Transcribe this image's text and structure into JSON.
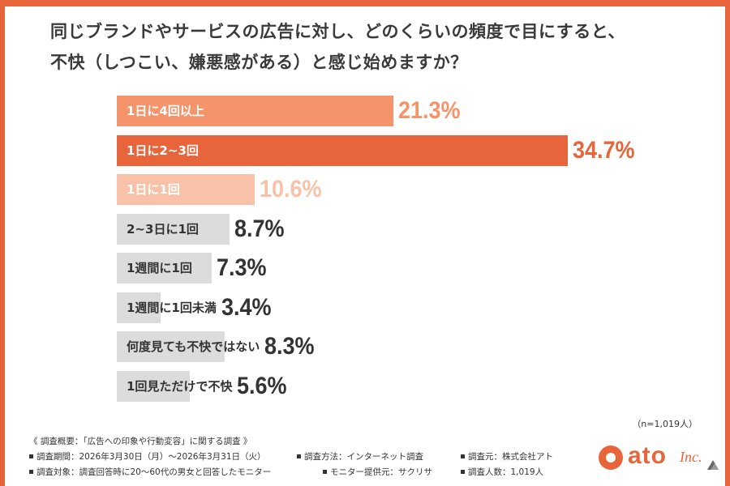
{
  "title": {
    "line1": "同じブランドやサービスの広告に対し、どのくらいの頻度で目にすると、",
    "line2": "不快（しつこい、嫌悪感がある）と感じ始めますか？"
  },
  "chart_data": {
    "type": "bar",
    "orientation": "horizontal",
    "categories": [
      "1日に4回以上",
      "1日に2~3回",
      "1日に1回",
      "2~3日に1回",
      "1週間に1回",
      "1週間に1回未満",
      "何度見ても不快ではない",
      "1回見ただけで不快"
    ],
    "values": [
      21.3,
      34.7,
      10.6,
      8.7,
      7.3,
      3.4,
      8.3,
      5.6
    ],
    "value_labels": [
      "21.3%",
      "34.7%",
      "10.6%",
      "8.7%",
      "7.3%",
      "3.4%",
      "8.3%",
      "5.6%"
    ],
    "unit": "%",
    "xlim": [
      0,
      34.7
    ],
    "grid": false,
    "legend": "none",
    "colors": {
      "bars": [
        "#f5946a",
        "#e8643a",
        "#f9c2a8",
        "#dcdcdc",
        "#dcdcdc",
        "#dcdcdc",
        "#dcdcdc",
        "#dcdcdc"
      ],
      "labels": [
        "#ffffff",
        "#ffffff",
        "#ffffff",
        "#333333",
        "#333333",
        "#333333",
        "#333333",
        "#333333"
      ],
      "values": [
        "#f5946a",
        "#e8643a",
        "#f9c2a8",
        "#333333",
        "#333333",
        "#333333",
        "#333333",
        "#333333"
      ]
    }
  },
  "sample_size": "（n=1,019人）",
  "footer": {
    "heading": "《 調査概要：「広告への印象や行動変容」に関する調査 》",
    "period": "調査期間：2026年3月30日（月）～2026年3月31日（火）",
    "method": "調査方法：インターネット調査",
    "source": "調査元：株式会社アト",
    "target": "調査対象：調査回答時に20〜60代の男女と回答したモニター",
    "provider": "モニター提供元：サクリサ",
    "count": "調査人数：1,019人"
  },
  "logo": {
    "name": "ato",
    "suffix": "Inc."
  }
}
